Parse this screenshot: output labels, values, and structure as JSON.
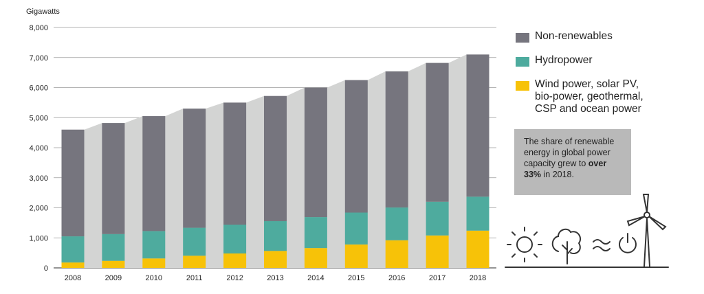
{
  "chart_data": {
    "type": "bar",
    "stacked": true,
    "categories": [
      "2008",
      "2009",
      "2010",
      "2011",
      "2012",
      "2013",
      "2014",
      "2015",
      "2016",
      "2017",
      "2018"
    ],
    "series": [
      {
        "name": "Wind power, solar PV, bio-power, geothermal, CSP and ocean power",
        "color": "#f7c208",
        "values": [
          180,
          235,
          315,
          405,
          480,
          565,
          660,
          780,
          920,
          1080,
          1240
        ]
      },
      {
        "name": "Hydropower",
        "color": "#4eab9e",
        "values": [
          870,
          890,
          910,
          930,
          960,
          990,
          1030,
          1060,
          1090,
          1120,
          1130
        ]
      },
      {
        "name": "Non-renewables",
        "color": "#76757e",
        "values": [
          3550,
          3695,
          3825,
          3965,
          4060,
          4165,
          4310,
          4410,
          4530,
          4620,
          4730
        ]
      }
    ],
    "totals": [
      4600,
      4820,
      5050,
      5300,
      5500,
      5720,
      6000,
      6250,
      6540,
      6820,
      7100
    ],
    "ylabel": "Gigawatts",
    "ylim": [
      0,
      8000
    ],
    "yticks": [
      "0",
      "1,000",
      "2,000",
      "3,000",
      "4,000",
      "5,000",
      "6,000",
      "7,000",
      "8,000"
    ],
    "yticks_values": [
      0,
      1000,
      2000,
      3000,
      4000,
      5000,
      6000,
      7000,
      8000
    ],
    "grid": true,
    "legend_position": "right",
    "background_band_color": "#d3d4d3"
  },
  "legend": {
    "items": [
      {
        "label": "Non-renewables",
        "color": "#76757e"
      },
      {
        "label": "Hydropower",
        "color": "#4eab9e"
      },
      {
        "label": "Wind power, solar PV,\nbio-power, geothermal,\nCSP and ocean power",
        "color": "#f7c208"
      }
    ]
  },
  "callout": {
    "text_before": "The share of renewable energy in global power capacity grew to ",
    "text_bold": "over 33%",
    "text_after": " in 2018."
  },
  "icons": [
    "sun-icon",
    "tree-icon",
    "water-waves-icon",
    "power-icon",
    "wind-turbine-icon"
  ]
}
